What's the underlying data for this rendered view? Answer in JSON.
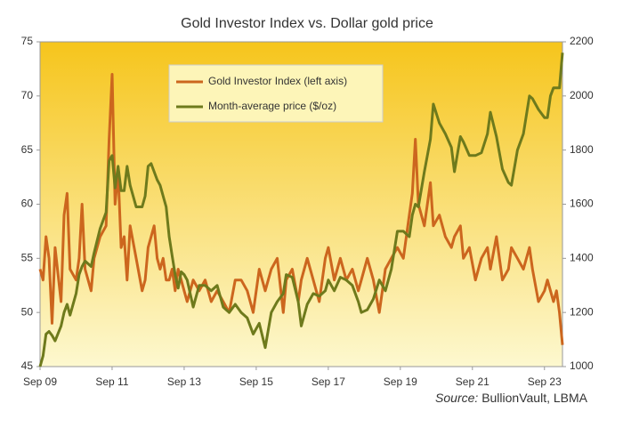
{
  "chart_data": {
    "type": "line",
    "title": "Gold Investor Index vs. Dollar gold price",
    "source_label": "Source:",
    "source": "BullionVault, LBMA",
    "x": [
      "2009-09",
      "2009-10",
      "2009-11",
      "2009-12",
      "2010-01",
      "2010-02",
      "2010-04",
      "2010-05",
      "2010-06",
      "2010-07",
      "2010-09",
      "2010-10",
      "2010-11",
      "2010-12",
      "2011-02",
      "2011-03",
      "2011-05",
      "2011-07",
      "2011-08",
      "2011-09",
      "2011-10",
      "2011-11",
      "2011-12",
      "2012-01",
      "2012-02",
      "2012-03",
      "2012-05",
      "2012-07",
      "2012-08",
      "2012-09",
      "2012-10",
      "2012-11",
      "2012-12",
      "2013-01",
      "2013-02",
      "2013-03",
      "2013-04",
      "2013-05",
      "2013-06",
      "2013-07",
      "2013-08",
      "2013-09",
      "2013-10",
      "2013-12",
      "2014-02",
      "2014-04",
      "2014-06",
      "2014-08",
      "2014-10",
      "2014-12",
      "2015-02",
      "2015-04",
      "2015-06",
      "2015-08",
      "2015-10",
      "2015-12",
      "2016-02",
      "2016-04",
      "2016-06",
      "2016-07",
      "2016-09",
      "2016-11",
      "2016-12",
      "2017-02",
      "2017-04",
      "2017-06",
      "2017-08",
      "2017-09",
      "2017-11",
      "2018-01",
      "2018-03",
      "2018-05",
      "2018-07",
      "2018-08",
      "2018-10",
      "2018-12",
      "2019-02",
      "2019-04",
      "2019-06",
      "2019-08",
      "2019-10",
      "2019-12",
      "2020-01",
      "2020-02",
      "2020-03",
      "2020-05",
      "2020-07",
      "2020-08",
      "2020-10",
      "2020-12",
      "2021-02",
      "2021-03",
      "2021-05",
      "2021-06",
      "2021-08",
      "2021-10",
      "2021-12",
      "2022-02",
      "2022-03",
      "2022-05",
      "2022-07",
      "2022-09",
      "2022-10",
      "2022-12",
      "2023-02",
      "2023-04",
      "2023-05",
      "2023-07",
      "2023-09",
      "2023-10",
      "2023-11",
      "2023-12",
      "2024-01",
      "2024-02",
      "2024-03"
    ],
    "series": [
      {
        "name": "Gold Investor Index (left axis)",
        "color": "#cc661e",
        "axis": "y",
        "values": [
          54,
          53,
          57,
          55,
          49,
          56,
          51,
          59,
          61,
          54,
          53,
          55,
          60,
          54,
          52,
          55,
          57,
          58,
          66,
          72,
          60,
          63,
          56,
          57,
          53,
          58,
          55,
          52,
          53,
          56,
          57,
          58,
          55,
          54,
          55,
          53,
          53,
          54,
          52,
          54,
          53,
          52,
          51,
          53,
          52,
          53,
          51,
          52,
          51,
          50,
          53,
          53,
          52,
          50,
          54,
          52,
          54,
          55,
          50,
          53,
          54,
          51,
          53,
          55,
          53,
          51,
          55,
          56,
          53,
          55,
          53,
          54,
          52,
          53,
          55,
          53,
          50,
          54,
          55,
          56,
          55,
          59,
          61,
          66,
          60,
          58,
          62,
          58,
          59,
          57,
          56,
          57,
          58,
          55,
          56,
          53,
          55,
          56,
          54,
          57,
          53,
          54,
          56,
          55,
          54,
          56,
          54,
          51,
          52,
          53,
          52,
          51,
          52,
          50,
          47
        ]
      },
      {
        "name": "Month-average price ($/oz)",
        "color": "#6e7a1c",
        "axis": "y2",
        "values": [
          1000,
          1040,
          1120,
          1130,
          1115,
          1095,
          1150,
          1200,
          1230,
          1190,
          1270,
          1340,
          1370,
          1390,
          1370,
          1420,
          1510,
          1570,
          1760,
          1780,
          1660,
          1740,
          1650,
          1650,
          1740,
          1670,
          1590,
          1590,
          1630,
          1740,
          1750,
          1720,
          1690,
          1670,
          1630,
          1590,
          1480,
          1410,
          1340,
          1290,
          1350,
          1340,
          1320,
          1220,
          1300,
          1300,
          1280,
          1300,
          1220,
          1200,
          1230,
          1200,
          1180,
          1120,
          1160,
          1070,
          1200,
          1240,
          1270,
          1340,
          1330,
          1240,
          1150,
          1230,
          1270,
          1260,
          1280,
          1320,
          1280,
          1330,
          1320,
          1300,
          1240,
          1200,
          1210,
          1250,
          1320,
          1280,
          1360,
          1500,
          1500,
          1480,
          1560,
          1600,
          1590,
          1720,
          1840,
          1970,
          1900,
          1860,
          1810,
          1720,
          1850,
          1830,
          1780,
          1780,
          1790,
          1860,
          1940,
          1850,
          1730,
          1680,
          1670,
          1800,
          1860,
          2000,
          1990,
          1950,
          1920,
          1920,
          2000,
          2030,
          2030,
          2030,
          2160
        ]
      }
    ],
    "xlim": [
      "2009-09",
      "2024-03"
    ],
    "xticks": [
      {
        "value": "2009-09",
        "label": "Sep 09"
      },
      {
        "value": "2011-09",
        "label": "Sep 11"
      },
      {
        "value": "2013-09",
        "label": "Sep 13"
      },
      {
        "value": "2015-09",
        "label": "Sep 15"
      },
      {
        "value": "2017-09",
        "label": "Sep 17"
      },
      {
        "value": "2019-09",
        "label": "Sep 19"
      },
      {
        "value": "2021-09",
        "label": "Sep 21"
      },
      {
        "value": "2023-09",
        "label": "Sep 23"
      }
    ],
    "ylim": [
      45,
      75
    ],
    "yticks": [
      45,
      50,
      55,
      60,
      65,
      70,
      75
    ],
    "y2lim": [
      1000,
      2200
    ],
    "y2ticks": [
      1000,
      1200,
      1400,
      1600,
      1800,
      2000,
      2200
    ],
    "grid": false
  }
}
